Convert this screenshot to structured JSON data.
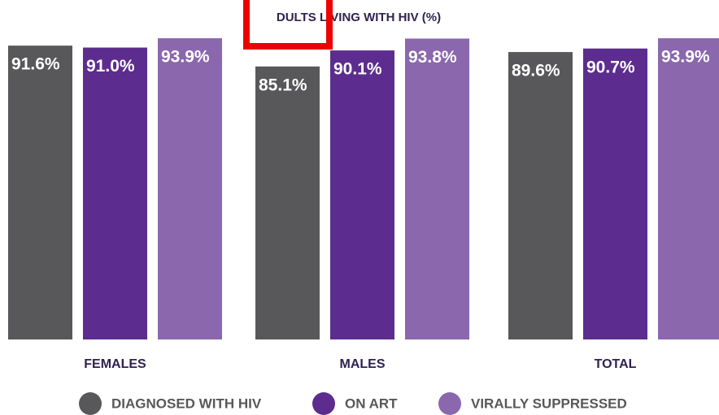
{
  "chart_data": {
    "type": "bar",
    "title": "DULTS LIVING WITH HIV (%)",
    "categories": [
      "FEMALES",
      "MALES",
      "TOTAL"
    ],
    "series": [
      {
        "name": "DIAGNOSED WITH HIV",
        "color": "#58585a",
        "values": [
          91.6,
          85.1,
          89.6
        ],
        "value_labels": [
          "91.6%",
          "85.1%",
          "89.6%"
        ]
      },
      {
        "name": "ON ART",
        "color": "#5c2d8e",
        "values": [
          91.0,
          90.1,
          90.7
        ],
        "value_labels": [
          "91.0%",
          "90.1%",
          "90.7%"
        ]
      },
      {
        "name": "VIRALLY SUPPRESSED",
        "color": "#8b67ad",
        "values": [
          93.9,
          93.8,
          93.9
        ],
        "value_labels": [
          "93.9%",
          "93.8%",
          "93.9%"
        ]
      }
    ]
  }
}
